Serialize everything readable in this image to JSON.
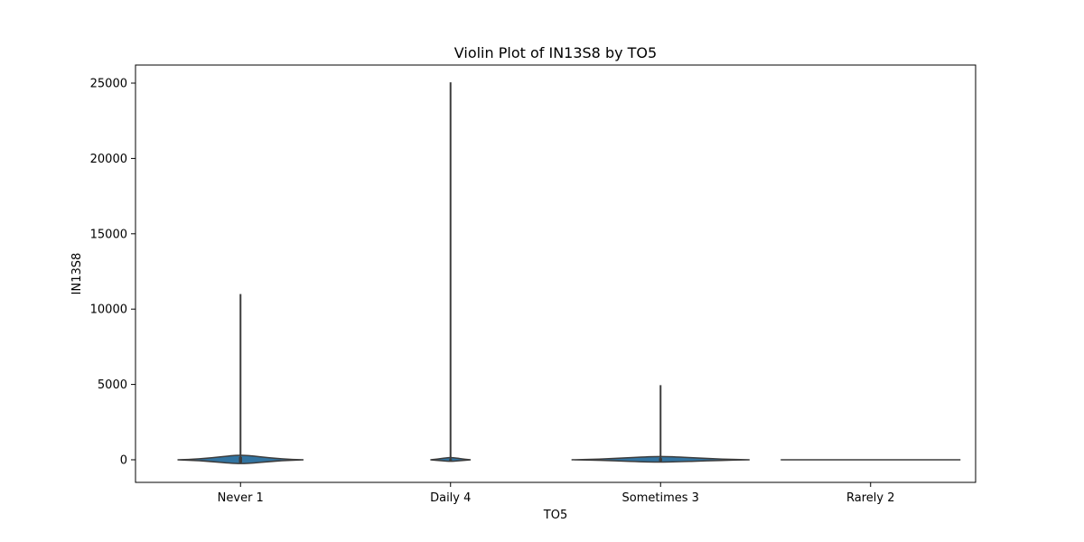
{
  "chart_data": {
    "type": "violin",
    "title": "Violin Plot of IN13S8 by TO5",
    "xlabel": "TO5",
    "ylabel": "IN13S8",
    "categories": [
      "Never 1",
      "Daily 4",
      "Sometimes 3",
      "Rarely 2"
    ],
    "ylim": [
      -1500,
      26200
    ],
    "yticks": [
      0,
      5000,
      10000,
      15000,
      20000,
      25000
    ],
    "grid": false,
    "fill_color": "#3274a1",
    "edge_color": "#3d3d3d",
    "violins": [
      {
        "category": "Never 1",
        "min": -250,
        "max": 11000,
        "body_top": 300,
        "body_bottom": -250,
        "half_width_fraction": 0.75
      },
      {
        "category": "Daily 4",
        "min": -100,
        "max": 25050,
        "body_top": 150,
        "body_bottom": -100,
        "half_width_fraction": 0.24
      },
      {
        "category": "Sometimes 3",
        "min": -150,
        "max": 4950,
        "body_top": 220,
        "body_bottom": -150,
        "half_width_fraction": 1.06
      },
      {
        "category": "Rarely 2",
        "min": 0,
        "max": 0,
        "body_top": 0,
        "body_bottom": 0,
        "half_width_fraction": 1.07
      }
    ]
  }
}
